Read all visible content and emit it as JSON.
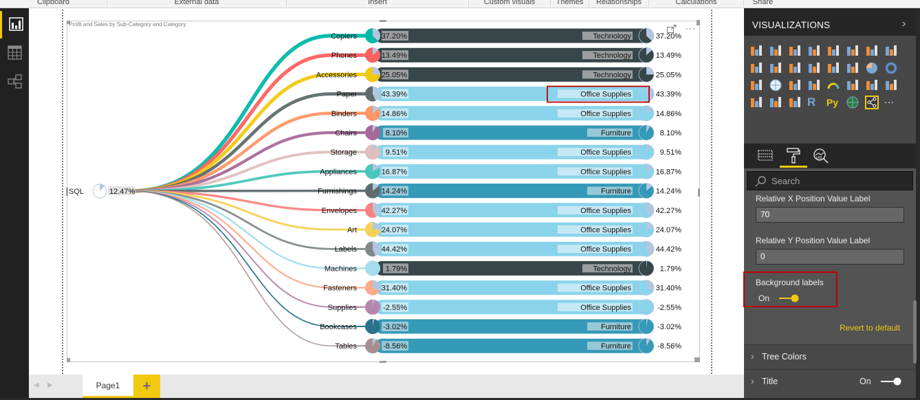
{
  "ribbon": {
    "groups": [
      "Clipboard",
      "External data",
      "Insert",
      "Custom visuals",
      "Themes",
      "Relationships",
      "Calculations",
      "Share"
    ]
  },
  "left_nav": {
    "items": [
      {
        "name": "report-view",
        "icon": "bar-chart-icon",
        "active": true
      },
      {
        "name": "data-view",
        "icon": "table-icon",
        "active": false
      },
      {
        "name": "model-view",
        "icon": "relationships-icon",
        "active": false
      }
    ]
  },
  "visual": {
    "title": "Profit and Sales by Sub-Category and Category",
    "expand_icon": "focus-mode-icon",
    "more_icon": "more-options-icon"
  },
  "chart_data": {
    "type": "tree",
    "title": "Profit and Sales by Sub-Category and Category",
    "root": {
      "label": "SQL",
      "value_label": "12.47%",
      "pie_fraction": 0.1247
    },
    "colors": {
      "Technology": "#374649",
      "Office Supplies": "#8ad4eb",
      "Furniture": "#3599b8"
    },
    "nodes": [
      {
        "label": "Copiers",
        "value": 37.2,
        "value_label": "37.20%",
        "category": "Technology",
        "color": "#01b8aa"
      },
      {
        "label": "Phones",
        "value": 13.49,
        "value_label": "13.49%",
        "category": "Technology",
        "color": "#fd625e"
      },
      {
        "label": "Accessories",
        "value": 25.05,
        "value_label": "25.05%",
        "category": "Technology",
        "color": "#f2c80f"
      },
      {
        "label": "Paper",
        "value": 43.39,
        "value_label": "43.39%",
        "category": "Office Supplies",
        "color": "#5f6b6d"
      },
      {
        "label": "Binders",
        "value": 14.86,
        "value_label": "14.86%",
        "category": "Office Supplies",
        "color": "#fe9666"
      },
      {
        "label": "Chairs",
        "value": 8.1,
        "value_label": "8.10%",
        "category": "Furniture",
        "color": "#a66999"
      },
      {
        "label": "Storage",
        "value": 9.51,
        "value_label": "9.51%",
        "category": "Office Supplies",
        "color": "#dfbfbf"
      },
      {
        "label": "Appliances",
        "value": 16.87,
        "value_label": "16.87%",
        "category": "Office Supplies",
        "color": "#4ac5bb"
      },
      {
        "label": "Furnishings",
        "value": 14.24,
        "value_label": "14.24%",
        "category": "Furniture",
        "color": "#5f6b6d"
      },
      {
        "label": "Envelopes",
        "value": 42.27,
        "value_label": "42.27%",
        "category": "Office Supplies",
        "color": "#fb8281"
      },
      {
        "label": "Art",
        "value": 24.07,
        "value_label": "24.07%",
        "category": "Office Supplies",
        "color": "#f4d25a"
      },
      {
        "label": "Labels",
        "value": 44.42,
        "value_label": "44.42%",
        "category": "Office Supplies",
        "color": "#7f898a"
      },
      {
        "label": "Machines",
        "value": 1.79,
        "value_label": "1.79%",
        "category": "Technology",
        "color": "#a4ddee"
      },
      {
        "label": "Fasteners",
        "value": 31.4,
        "value_label": "31.40%",
        "category": "Office Supplies",
        "color": "#fdab89"
      },
      {
        "label": "Supplies",
        "value": -2.55,
        "value_label": "-2.55%",
        "category": "Office Supplies",
        "color": "#b687ac"
      },
      {
        "label": "Bookcases",
        "value": -3.02,
        "value_label": "-3.02%",
        "category": "Furniture",
        "color": "#28738a"
      },
      {
        "label": "Tables",
        "value": -8.56,
        "value_label": "-8.56%",
        "category": "Furniture",
        "color": "#a78f8f"
      }
    ],
    "highlighted_label": "Office Supplies"
  },
  "pages": {
    "tabs": [
      {
        "label": "Page1",
        "active": true
      }
    ],
    "add_label": "+"
  },
  "visualizations_pane": {
    "title": "VISUALIZATIONS",
    "collapse_icon": "chevron-right-icon",
    "icons": [
      "stacked-bar-icon",
      "stacked-column-icon",
      "clustered-bar-icon",
      "clustered-column-icon",
      "100-stacked-bar-icon",
      "100-stacked-column-icon",
      "line-chart-icon",
      "area-chart-icon",
      "stacked-area-icon",
      "line-column-icon",
      "line-clustered-column-icon",
      "ribbon-chart-icon",
      "waterfall-icon",
      "scatter-icon",
      "pie-icon",
      "donut-icon",
      "treemap-icon",
      "map-icon",
      "filled-map-icon",
      "funnel-icon",
      "gauge-icon",
      "card-icon",
      "multirow-card-icon",
      "kpi-icon",
      "slicer-icon",
      "table-icon",
      "matrix-icon",
      "r-visual-icon",
      "python-visual-icon",
      "globe-map-icon",
      "tree-visual-icon",
      "more-visuals-icon"
    ],
    "icon_text": {
      "r": "R",
      "py": "Py",
      "more": "···"
    },
    "tabs": [
      "fields-icon",
      "format-paint-roller-icon",
      "analytics-icon"
    ],
    "search_placeholder": "Search",
    "fields": [
      {
        "label": "Relative X Position Value Label",
        "value": "70"
      },
      {
        "label": "Relative Y Position Value Label",
        "value": "0"
      }
    ],
    "background_labels": {
      "label": "Background labels",
      "state": "On",
      "on": true
    },
    "revert_label": "Revert to default",
    "sections": [
      {
        "label": "Tree Colors"
      },
      {
        "label": "Title",
        "state": "On",
        "on": true
      }
    ]
  }
}
